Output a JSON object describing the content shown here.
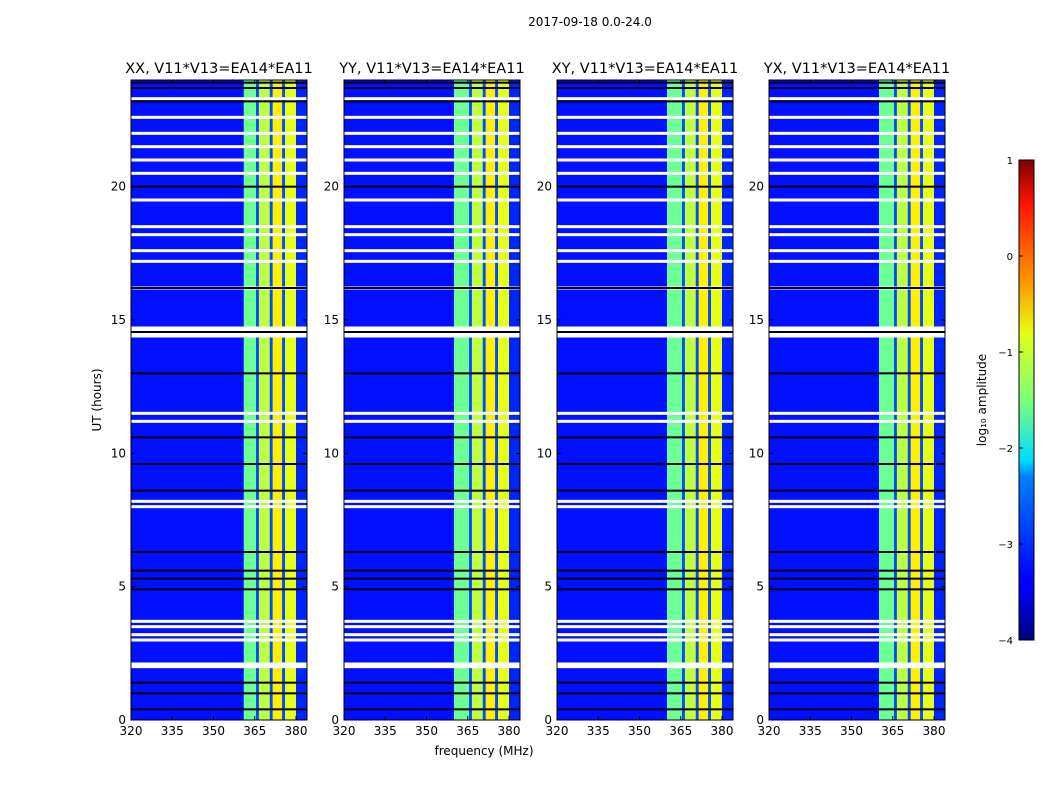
{
  "chart_data": {
    "type": "heatmap",
    "suptitle": "2017-09-18 0.0-24.0",
    "xlabel": "frequency (MHz)",
    "ylabel": "UT (hours)",
    "xlim": [
      320,
      384
    ],
    "ylim": [
      0,
      24
    ],
    "xticks": [
      320,
      335,
      350,
      365,
      380
    ],
    "yticks": [
      0,
      5,
      10,
      15,
      20
    ],
    "panels": [
      {
        "title": "XX, V11*V13=EA14*EA11",
        "band_start_mhz": 361
      },
      {
        "title": "YY, V11*V13=EA14*EA11",
        "band_start_mhz": 360
      },
      {
        "title": "XY, V11*V13=EA14*EA11",
        "band_start_mhz": 360
      },
      {
        "title": "YX, V11*V13=EA14*EA11",
        "band_start_mhz": 360
      }
    ],
    "band_end_mhz": 380,
    "band_columns_mhz": [
      {
        "start": 361,
        "end": 365.5,
        "level": -1.6
      },
      {
        "start": 365.5,
        "end": 366.5,
        "level": -3.0
      },
      {
        "start": 366.5,
        "end": 370.5,
        "level": -1.2
      },
      {
        "start": 370.5,
        "end": 371.5,
        "level": -3.0
      },
      {
        "start": 371.5,
        "end": 375,
        "level": -0.8
      },
      {
        "start": 375,
        "end": 376,
        "level": -3.0
      },
      {
        "start": 376,
        "end": 380,
        "level": -1.0
      },
      {
        "start": 380,
        "end": 384,
        "level": -3.2
      }
    ],
    "background_level": -3.3,
    "flagged_ut_hours": [
      2.0,
      2.1,
      3.0,
      3.2,
      3.5,
      3.7,
      8.0,
      8.2,
      11.2,
      11.5,
      14.4,
      14.5,
      14.6,
      14.7,
      16.2,
      17.2,
      17.6,
      18.2,
      18.5,
      19.5,
      20.5,
      21.0,
      21.5,
      22.0,
      22.6,
      23.3
    ],
    "dark_ut_hours": [
      0.4,
      1.0,
      1.4,
      4.9,
      5.3,
      5.6,
      6.3,
      8.6,
      9.6,
      10.6,
      13.0,
      14.55,
      16.2,
      20.0,
      23.2,
      23.7,
      23.9
    ],
    "colorbar": {
      "label": "log₁₀ amplitude",
      "ticks": [
        1,
        0,
        -1,
        -2,
        -3,
        -4
      ],
      "range": [
        -4,
        1
      ],
      "colormap": "jet"
    }
  }
}
